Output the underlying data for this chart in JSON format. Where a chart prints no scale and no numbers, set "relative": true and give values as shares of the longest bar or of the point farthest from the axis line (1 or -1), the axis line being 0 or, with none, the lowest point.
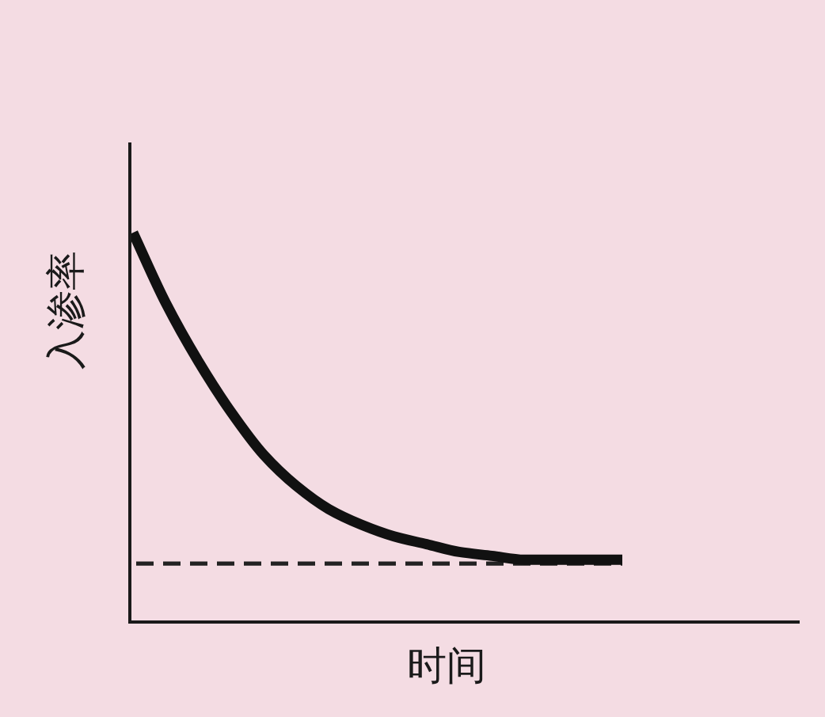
{
  "chart_data": {
    "type": "line",
    "xlabel": "时间",
    "ylabel": "入渗率",
    "relative": true,
    "categories": [
      null,
      null,
      null,
      null,
      null,
      null,
      null,
      null,
      null,
      null,
      null,
      null,
      null,
      null,
      null,
      null
    ],
    "series": [
      {
        "color": "#111111",
        "line_style": "solid",
        "values": [
          1.0,
          0.82,
          0.67,
          0.54,
          0.43,
          0.35,
          0.29,
          0.25,
          0.22,
          0.2,
          0.18,
          0.17,
          0.16,
          0.16,
          0.16,
          0.16
        ]
      }
    ],
    "ref_lines": [
      {
        "axis": "y",
        "value": 0.15,
        "color": "#222222",
        "line_style": "dashed"
      }
    ]
  }
}
